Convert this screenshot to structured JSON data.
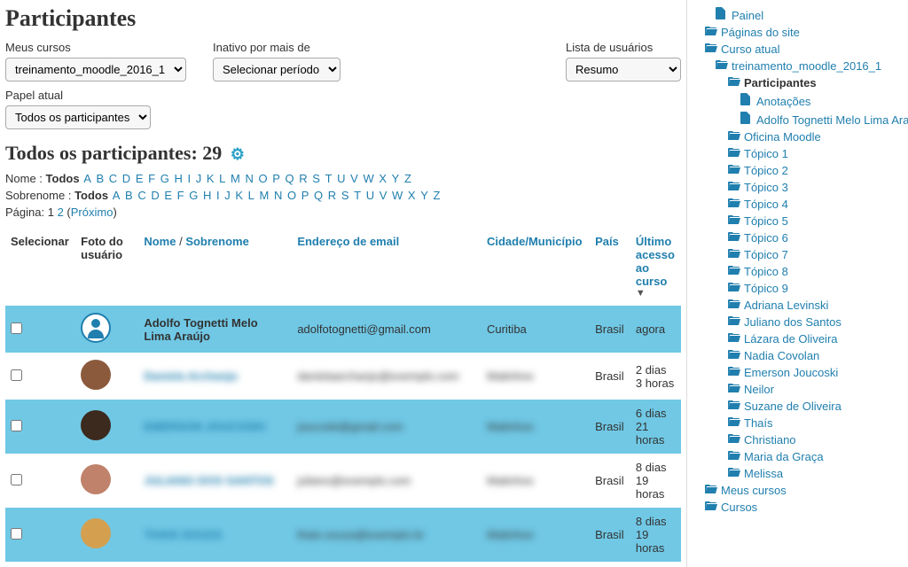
{
  "title": "Participantes",
  "filters": {
    "my_courses": {
      "label": "Meus cursos",
      "value": "treinamento_moodle_2016_1"
    },
    "inactive": {
      "label": "Inativo por mais de",
      "value": "Selecionar período"
    },
    "user_list": {
      "label": "Lista de usuários",
      "value": "Resumo"
    },
    "role": {
      "label": "Papel atual",
      "value": "Todos os participantes"
    }
  },
  "heading2": "Todos os participantes: 29",
  "alpha": {
    "name_label": "Nome :",
    "surname_label": "Sobrenome :",
    "current": "Todos",
    "letters": [
      "A",
      "B",
      "C",
      "D",
      "E",
      "F",
      "G",
      "H",
      "I",
      "J",
      "K",
      "L",
      "M",
      "N",
      "O",
      "P",
      "Q",
      "R",
      "S",
      "T",
      "U",
      "V",
      "W",
      "X",
      "Y",
      "Z"
    ]
  },
  "pagination": {
    "label": "Página:",
    "current": "1",
    "pages": [
      "2"
    ],
    "next": "Próximo"
  },
  "table": {
    "headers": {
      "select": "Selecionar",
      "photo": "Foto do usuário",
      "name": "Nome",
      "sep": " / ",
      "surname": "Sobrenome",
      "email": "Endereço de email",
      "city": "Cidade/Município",
      "country": "País",
      "last": "Último acesso ao curso"
    },
    "rows": [
      {
        "alt": true,
        "name": "Adolfo Tognetti Melo Lima Araújo",
        "email": "adolfotognetti@gmail.com",
        "city": "Curitiba",
        "country": "Brasil",
        "last": "agora",
        "blur": false,
        "avatar": "default"
      },
      {
        "alt": false,
        "name": "Daniela Archanjo",
        "email": "danielaarchanjo@exemplo.com",
        "city": "Matinhos",
        "country": "Brasil",
        "last": "2 dias 3 horas",
        "blur": true,
        "avatar": "#8b5a3c"
      },
      {
        "alt": true,
        "name": "EMERSON JOUCOSKI",
        "email": "joucoski@gmail.com",
        "city": "Matinhos",
        "country": "Brasil",
        "last": "6 dias 21 horas",
        "blur": true,
        "avatar": "#3c2a1e"
      },
      {
        "alt": false,
        "name": "JULIANO DOS SANTOS",
        "email": "juliano@exemplo.com",
        "city": "Matinhos",
        "country": "Brasil",
        "last": "8 dias 19 horas",
        "blur": true,
        "avatar": "#c0826a"
      },
      {
        "alt": true,
        "name": "THAIS SOUZA",
        "email": "thais.souza@exemplo.br",
        "city": "Matinhos",
        "country": "Brasil",
        "last": "8 dias 19 horas",
        "blur": true,
        "avatar": "#d4a050"
      }
    ]
  },
  "nav": [
    {
      "indent": 1,
      "icon": "file",
      "label": "Painel"
    },
    {
      "indent": 0,
      "icon": "folder",
      "label": "Páginas do site"
    },
    {
      "indent": 0,
      "icon": "folder",
      "label": "Curso atual"
    },
    {
      "indent": 1,
      "icon": "folder",
      "label": "treinamento_moodle_2016_1"
    },
    {
      "indent": 2,
      "icon": "folder",
      "label": "Participantes",
      "current": true
    },
    {
      "indent": 3,
      "icon": "file",
      "label": "Anotações"
    },
    {
      "indent": 3,
      "icon": "file",
      "label": "Adolfo Tognetti Melo Lima Araújo"
    },
    {
      "indent": 2,
      "icon": "folder",
      "label": "Oficina Moodle"
    },
    {
      "indent": 2,
      "icon": "folder",
      "label": "Tópico 1"
    },
    {
      "indent": 2,
      "icon": "folder",
      "label": "Tópico 2"
    },
    {
      "indent": 2,
      "icon": "folder",
      "label": "Tópico 3"
    },
    {
      "indent": 2,
      "icon": "folder",
      "label": "Tópico 4"
    },
    {
      "indent": 2,
      "icon": "folder",
      "label": "Tópico 5"
    },
    {
      "indent": 2,
      "icon": "folder",
      "label": "Tópico 6"
    },
    {
      "indent": 2,
      "icon": "folder",
      "label": "Tópico 7"
    },
    {
      "indent": 2,
      "icon": "folder",
      "label": "Tópico 8"
    },
    {
      "indent": 2,
      "icon": "folder",
      "label": "Tópico 9"
    },
    {
      "indent": 2,
      "icon": "folder",
      "label": "Adriana Levinski"
    },
    {
      "indent": 2,
      "icon": "folder",
      "label": "Juliano dos Santos"
    },
    {
      "indent": 2,
      "icon": "folder",
      "label": "Lázara de Oliveira"
    },
    {
      "indent": 2,
      "icon": "folder",
      "label": "Nadia Covolan"
    },
    {
      "indent": 2,
      "icon": "folder",
      "label": "Emerson Joucoski"
    },
    {
      "indent": 2,
      "icon": "folder",
      "label": "Neilor"
    },
    {
      "indent": 2,
      "icon": "folder",
      "label": "Suzane de Oliveira"
    },
    {
      "indent": 2,
      "icon": "folder",
      "label": "Thaís"
    },
    {
      "indent": 2,
      "icon": "folder",
      "label": "Christiano"
    },
    {
      "indent": 2,
      "icon": "folder",
      "label": "Maria da Graça"
    },
    {
      "indent": 2,
      "icon": "folder",
      "label": "Melissa"
    },
    {
      "indent": 0,
      "icon": "folder",
      "label": "Meus cursos"
    },
    {
      "indent": 0,
      "icon": "folder",
      "label": "Cursos"
    }
  ]
}
